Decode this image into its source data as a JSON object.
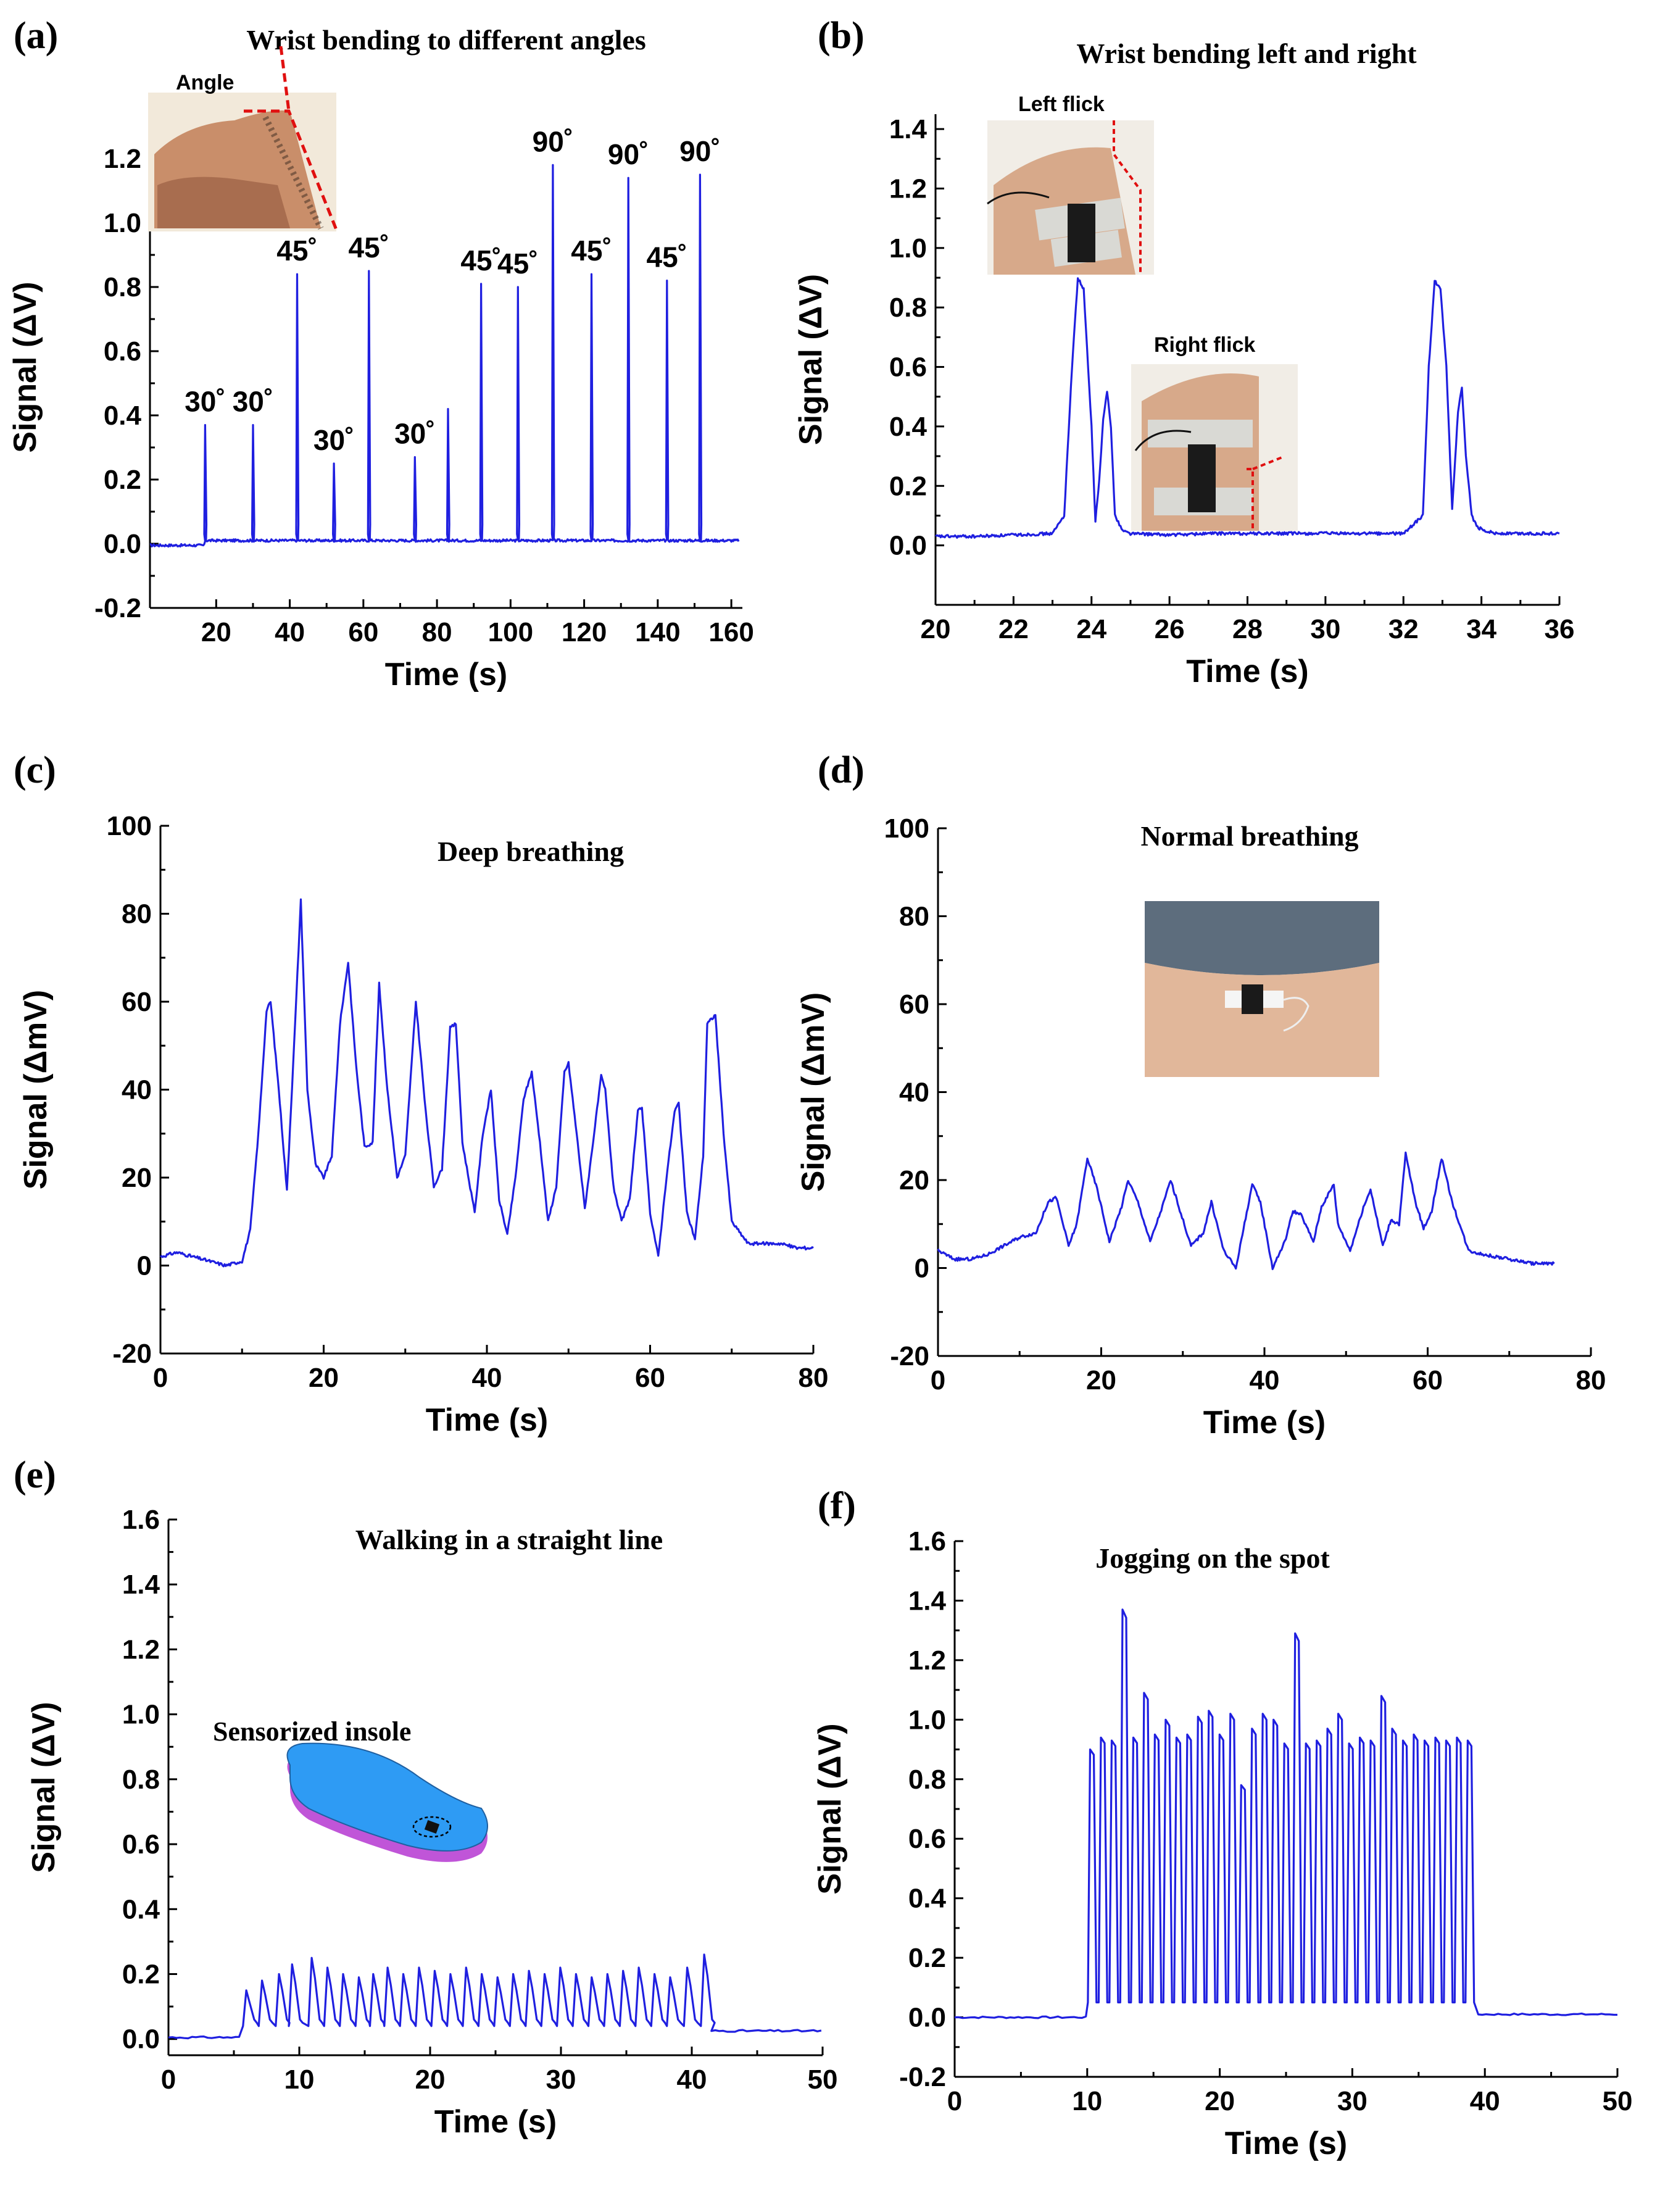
{
  "chart_data": [
    {
      "id": "a",
      "panel_label": "(a)",
      "type": "line",
      "title": "Wrist bending to different angles",
      "xlabel": "Time (s)",
      "ylabel": "Signal (ΔV)",
      "xlim": [
        2,
        163
      ],
      "ylim": [
        -0.2,
        1.3
      ],
      "xticks": [
        20,
        40,
        60,
        80,
        100,
        120,
        140,
        160
      ],
      "xticklabels": [
        "20",
        "40",
        "60",
        "80",
        "100",
        "120",
        "140",
        "160"
      ],
      "yticks": [
        -0.2,
        0.0,
        0.2,
        0.4,
        0.6,
        0.8,
        1.0,
        1.2
      ],
      "yticklabels": [
        "-0.2",
        "0.0",
        "0.2",
        "0.4",
        "0.6",
        "0.8",
        "1.0",
        "1.2"
      ],
      "baseline": 0.0,
      "peaks": [
        {
          "t": 17,
          "v": 0.37,
          "label": "30˚"
        },
        {
          "t": 30,
          "v": 0.37,
          "label": "30˚"
        },
        {
          "t": 42,
          "v": 0.84,
          "label": "45˚"
        },
        {
          "t": 52,
          "v": 0.25,
          "label": "30˚"
        },
        {
          "t": 61.5,
          "v": 0.85,
          "label": "45˚"
        },
        {
          "t": 74,
          "v": 0.27,
          "label": "30˚"
        },
        {
          "t": 83,
          "v": 0.42,
          "label": ""
        },
        {
          "t": 92,
          "v": 0.81,
          "label": "45˚"
        },
        {
          "t": 102,
          "v": 0.8,
          "label": "45˚"
        },
        {
          "t": 111.5,
          "v": 1.18,
          "label": "90˚"
        },
        {
          "t": 122,
          "v": 0.84,
          "label": "45˚"
        },
        {
          "t": 132,
          "v": 1.14,
          "label": "90˚"
        },
        {
          "t": 142.5,
          "v": 0.82,
          "label": "45˚"
        },
        {
          "t": 151.5,
          "v": 1.15,
          "label": "90˚"
        }
      ],
      "inset_labels": [
        "Angle"
      ]
    },
    {
      "id": "b",
      "panel_label": "(b)",
      "type": "line",
      "title": "Wrist bending left and right",
      "xlabel": "Time (s)",
      "ylabel": "Signal (ΔV)",
      "xlim": [
        20,
        36
      ],
      "ylim": [
        -0.2,
        1.45
      ],
      "xticks": [
        20,
        22,
        24,
        26,
        28,
        30,
        32,
        34,
        36
      ],
      "xticklabels": [
        "20",
        "22",
        "24",
        "26",
        "28",
        "30",
        "32",
        "34",
        "36"
      ],
      "yticks": [
        0.0,
        0.2,
        0.4,
        0.6,
        0.8,
        1.0,
        1.2,
        1.4
      ],
      "yticklabels": [
        "0.0",
        "0.2",
        "0.4",
        "0.6",
        "0.8",
        "1.0",
        "1.2",
        "1.4"
      ],
      "x": [
        20,
        21,
        22,
        23,
        23.3,
        23.5,
        23.65,
        23.8,
        24.0,
        24.1,
        24.2,
        24.3,
        24.4,
        24.5,
        24.6,
        24.8,
        25,
        26,
        27,
        28,
        29,
        30,
        31,
        32,
        32.5,
        32.65,
        32.8,
        32.95,
        33.1,
        33.25,
        33.4,
        33.5,
        33.6,
        33.75,
        33.9,
        34.1,
        34.4,
        35,
        36
      ],
      "y": [
        0.03,
        0.03,
        0.035,
        0.04,
        0.1,
        0.6,
        0.9,
        0.86,
        0.4,
        0.08,
        0.22,
        0.42,
        0.52,
        0.4,
        0.1,
        0.05,
        0.04,
        0.035,
        0.04,
        0.04,
        0.04,
        0.04,
        0.04,
        0.04,
        0.1,
        0.6,
        0.89,
        0.86,
        0.6,
        0.12,
        0.45,
        0.53,
        0.3,
        0.1,
        0.06,
        0.05,
        0.04,
        0.04,
        0.04
      ],
      "inset_labels": [
        "Left flick",
        "Right flick"
      ]
    },
    {
      "id": "c",
      "panel_label": "(c)",
      "type": "line",
      "title": "Deep breathing",
      "xlabel": "Time (s)",
      "ylabel": "Signal (ΔmV)",
      "xlim": [
        0,
        80
      ],
      "ylim": [
        -20,
        100
      ],
      "xticks": [
        0,
        20,
        40,
        60,
        80
      ],
      "xticklabels": [
        "0",
        "20",
        "40",
        "60",
        "80"
      ],
      "yticks": [
        -20,
        0,
        20,
        40,
        60,
        80,
        100
      ],
      "yticklabels": [
        "-20",
        "0",
        "20",
        "40",
        "60",
        "80",
        "100"
      ],
      "x": [
        0,
        2,
        4,
        6,
        8,
        10,
        11,
        12,
        13,
        13.5,
        14.5,
        15.5,
        16.5,
        17.2,
        18,
        19,
        20,
        21,
        22,
        23,
        24,
        25,
        26,
        26.8,
        27.8,
        29,
        30,
        31.3,
        32.5,
        33.5,
        34.5,
        35.5,
        36.2,
        37,
        38.5,
        39.5,
        40.5,
        41.5,
        42.5,
        43.5,
        44.5,
        45.5,
        46.5,
        47.5,
        48.5,
        49.5,
        50,
        51,
        52,
        53,
        54,
        54.5,
        55.5,
        56.5,
        57.5,
        58.5,
        59,
        60,
        61,
        62,
        63,
        63.5,
        64.5,
        65.5,
        66.5,
        67,
        68,
        69,
        70,
        72,
        74,
        76,
        78,
        80
      ],
      "y": [
        2,
        3,
        2,
        1,
        0,
        1,
        8,
        30,
        58,
        60,
        40,
        17,
        55,
        83,
        40,
        23,
        20,
        25,
        55,
        69,
        45,
        27,
        28,
        64,
        40,
        20,
        25,
        60,
        35,
        18,
        22,
        54,
        55,
        28,
        12,
        30,
        40,
        15,
        7,
        20,
        38,
        44,
        28,
        10,
        18,
        44,
        46,
        30,
        13,
        28,
        43,
        40,
        18,
        10,
        15,
        35,
        36,
        12,
        2,
        20,
        35,
        37,
        12,
        6,
        25,
        55,
        57,
        30,
        10,
        5,
        5,
        5,
        4,
        4
      ],
      "inset_labels": []
    },
    {
      "id": "d",
      "panel_label": "(d)",
      "type": "line",
      "title": "Normal breathing",
      "xlabel": "Time (s)",
      "ylabel": "Signal (ΔmV)",
      "xlim": [
        0,
        80
      ],
      "ylim": [
        -20,
        100
      ],
      "xticks": [
        0,
        20,
        40,
        60,
        80
      ],
      "xticklabels": [
        "0",
        "20",
        "40",
        "60",
        "80"
      ],
      "yticks": [
        -20,
        0,
        20,
        40,
        60,
        80,
        100
      ],
      "yticklabels": [
        "-20",
        "0",
        "20",
        "40",
        "60",
        "80",
        "100"
      ],
      "x": [
        0,
        2,
        4,
        6,
        8,
        10,
        12,
        13.5,
        14.5,
        16,
        17,
        18.3,
        19.5,
        21,
        22.5,
        23.3,
        24.5,
        26,
        27.5,
        28.5,
        29.5,
        31,
        32.5,
        33.5,
        35,
        36.5,
        38.5,
        39.5,
        41,
        42.5,
        43.5,
        44.5,
        46,
        47,
        48.5,
        49,
        50.5,
        52,
        53,
        54.5,
        55.5,
        56.5,
        57.3,
        58.5,
        59.5,
        60.5,
        61.7,
        63,
        65,
        67,
        70,
        73,
        75.5
      ],
      "y": [
        4,
        2,
        2,
        3,
        5,
        7,
        8,
        15,
        16,
        5,
        10,
        25,
        18,
        6,
        14,
        20,
        15,
        6,
        14,
        20,
        14,
        5,
        8,
        15,
        4,
        0,
        19,
        15,
        0,
        6,
        13,
        12,
        6,
        14,
        19,
        10,
        4,
        13,
        18,
        5,
        11,
        10,
        26,
        15,
        9,
        13,
        25,
        15,
        4,
        3,
        2,
        1,
        1
      ],
      "inset_labels": []
    },
    {
      "id": "e",
      "panel_label": "(e)",
      "type": "line",
      "title": "Walking in a straight line",
      "xlabel": "Time (s)",
      "ylabel": "Signal (ΔV)",
      "xlim": [
        0,
        50
      ],
      "ylim": [
        -0.05,
        1.6
      ],
      "xticks": [
        0,
        10,
        20,
        30,
        40,
        50
      ],
      "xticklabels": [
        "0",
        "10",
        "20",
        "30",
        "40",
        "50"
      ],
      "yticks": [
        0.0,
        0.2,
        0.4,
        0.6,
        0.8,
        1.0,
        1.2,
        1.4,
        1.6
      ],
      "yticklabels": [
        "0.0",
        "0.2",
        "0.4",
        "0.6",
        "0.8",
        "1.0",
        "1.2",
        "1.4",
        "1.6"
      ],
      "walk_start": 5.5,
      "walk_end": 41.5,
      "walk_peak_times": [
        5.8,
        7.0,
        8.3,
        9.3,
        10.8,
        12.0,
        13.2,
        14.4,
        15.5,
        16.6,
        17.8,
        19.0,
        20.2,
        21.4,
        22.6,
        23.8,
        25.0,
        26.2,
        27.4,
        28.6,
        29.8,
        31.0,
        32.2,
        33.4,
        34.6,
        35.8,
        37.0,
        38.2,
        39.5,
        40.8
      ],
      "walk_peak_values": [
        0.15,
        0.18,
        0.2,
        0.23,
        0.25,
        0.22,
        0.2,
        0.19,
        0.2,
        0.22,
        0.2,
        0.22,
        0.21,
        0.2,
        0.22,
        0.2,
        0.19,
        0.2,
        0.21,
        0.2,
        0.22,
        0.2,
        0.19,
        0.2,
        0.21,
        0.22,
        0.2,
        0.19,
        0.22,
        0.26
      ],
      "inset_labels": [
        "Sensorized insole"
      ]
    },
    {
      "id": "f",
      "panel_label": "(f)",
      "type": "line",
      "title": "Jogging on the spot",
      "xlabel": "Time (s)",
      "ylabel": "Signal (ΔV)",
      "xlim": [
        0,
        50
      ],
      "ylim": [
        -0.2,
        1.6
      ],
      "xticks": [
        0,
        10,
        20,
        30,
        40,
        50
      ],
      "xticklabels": [
        "0",
        "10",
        "20",
        "30",
        "40",
        "50"
      ],
      "yticks": [
        -0.2,
        0.0,
        0.2,
        0.4,
        0.6,
        0.8,
        1.0,
        1.2,
        1.4,
        1.6
      ],
      "yticklabels": [
        "-0.2",
        "0.0",
        "0.2",
        "0.4",
        "0.6",
        "0.8",
        "1.0",
        "1.2",
        "1.4",
        "1.6"
      ],
      "jog_start": 10,
      "jog_end": 39.3,
      "jog_peak_values": [
        0.9,
        0.94,
        0.93,
        1.37,
        0.94,
        1.09,
        0.95,
        1.0,
        0.94,
        0.95,
        1.01,
        1.03,
        0.95,
        1.02,
        0.78,
        0.97,
        1.02,
        1.0,
        0.92,
        1.29,
        0.92,
        0.93,
        0.97,
        1.02,
        0.92,
        0.94,
        0.93,
        1.08,
        0.97,
        0.93,
        0.95,
        0.93,
        0.94,
        0.93,
        0.94,
        0.93
      ],
      "inset_labels": []
    }
  ]
}
